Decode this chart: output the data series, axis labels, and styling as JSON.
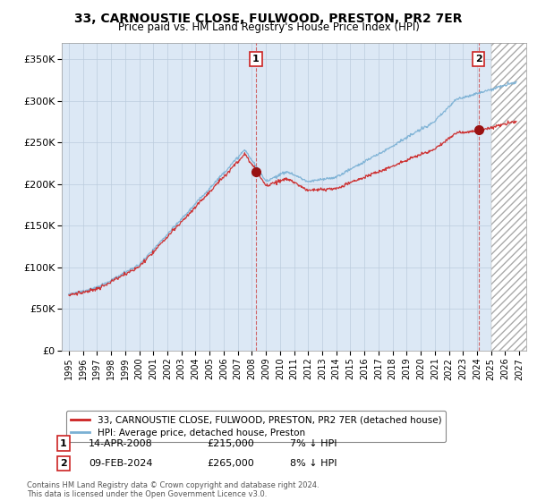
{
  "title": "33, CARNOUSTIE CLOSE, FULWOOD, PRESTON, PR2 7ER",
  "subtitle": "Price paid vs. HM Land Registry's House Price Index (HPI)",
  "ylabel_ticks": [
    "£0",
    "£50K",
    "£100K",
    "£150K",
    "£200K",
    "£250K",
    "£300K",
    "£350K"
  ],
  "ylim": [
    0,
    370000
  ],
  "xlim_start": 1994.5,
  "xlim_end": 2027.5,
  "sale1_x": 2008.29,
  "sale1_price": 215000,
  "sale1_label": "1",
  "sale1_info_date": "14-APR-2008",
  "sale1_info_price": "£215,000",
  "sale1_info_hpi": "7% ↓ HPI",
  "sale2_x": 2024.11,
  "sale2_price": 265000,
  "sale2_label": "2",
  "sale2_info_date": "09-FEB-2024",
  "sale2_info_price": "£265,000",
  "sale2_info_hpi": "8% ↓ HPI",
  "line_color_red": "#cc2222",
  "line_color_blue": "#7ab0d4",
  "background_color": "#ffffff",
  "chart_bg_color": "#dce8f5",
  "grid_color": "#bbccdd",
  "hatch_bg_color": "#e8e8e8",
  "legend_label_red": "33, CARNOUSTIE CLOSE, FULWOOD, PRESTON, PR2 7ER (detached house)",
  "legend_label_blue": "HPI: Average price, detached house, Preston",
  "footer": "Contains HM Land Registry data © Crown copyright and database right 2024.\nThis data is licensed under the Open Government Licence v3.0.",
  "xticks": [
    1995,
    1996,
    1997,
    1998,
    1999,
    2000,
    2001,
    2002,
    2003,
    2004,
    2005,
    2006,
    2007,
    2008,
    2009,
    2010,
    2011,
    2012,
    2013,
    2014,
    2015,
    2016,
    2017,
    2018,
    2019,
    2020,
    2021,
    2022,
    2023,
    2024,
    2025,
    2026,
    2027
  ],
  "hatch_start": 2025.0
}
